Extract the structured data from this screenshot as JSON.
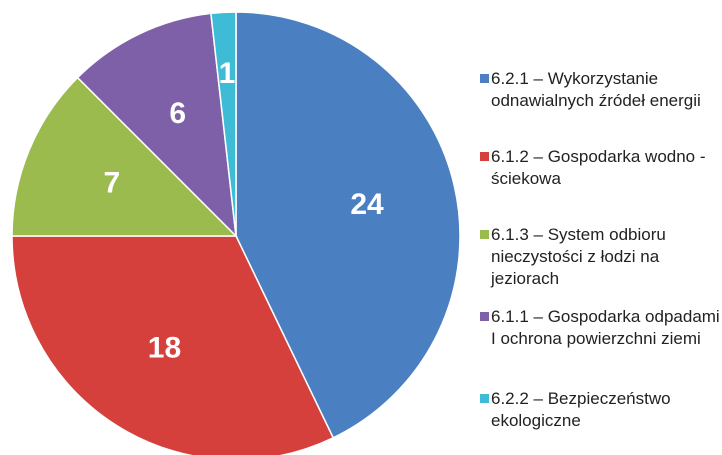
{
  "chart_data": {
    "type": "pie",
    "categories": [
      "6.2.1 – Wykorzystanie odnawialnych źródeł energii",
      "6.1.2 – Gospodarka wodno - ściekowa",
      "6.1.3 – System odbioru nieczystości z łodzi na jeziorach",
      "6.1.1 – Gospodarka odpadami I ochrona powierzchni ziemi",
      "6.2.2 – Bezpieczeństwo ekologiczne"
    ],
    "values": [
      24,
      18,
      7,
      6,
      1
    ],
    "colors": [
      "#4a7fc1",
      "#d6403c",
      "#9bbb4f",
      "#7e60a8",
      "#3fbcd5"
    ],
    "legend": "right"
  }
}
